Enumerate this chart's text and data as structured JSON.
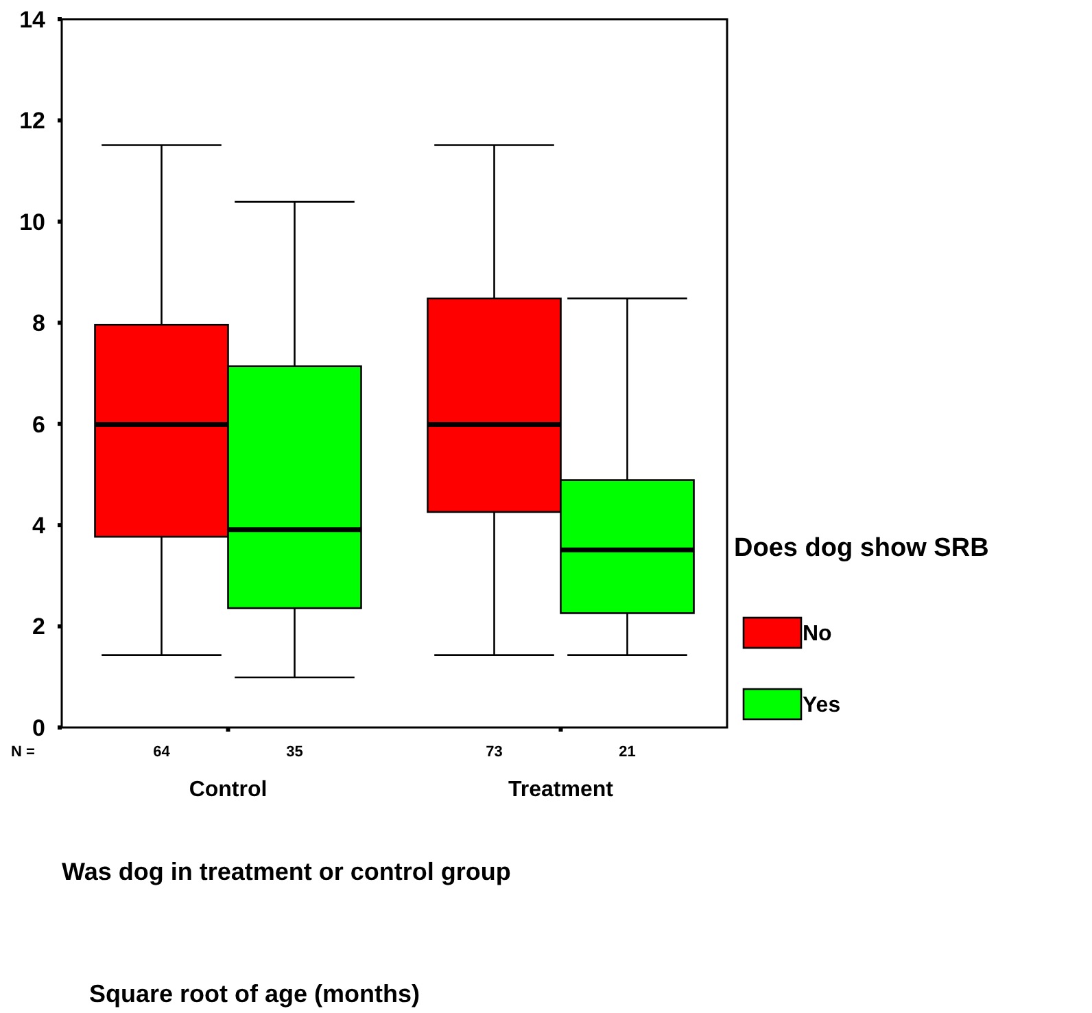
{
  "chart_data": {
    "type": "box",
    "xlabel": "Was dog in treatment or control group",
    "legend_title": "Does dog show SRB",
    "legend": "right",
    "categories": [
      "Control",
      "Treatment"
    ],
    "ylim": [
      0,
      14
    ],
    "yticks": [
      0,
      2,
      4,
      6,
      8,
      10,
      12,
      14
    ],
    "series": [
      {
        "name": "No",
        "color": "#ff0000",
        "boxes": [
          {
            "low": 1.43,
            "q1": 3.77,
            "median": 5.99,
            "q3": 7.96,
            "high": 11.51
          },
          {
            "low": 1.43,
            "q1": 4.26,
            "median": 5.99,
            "q3": 8.48,
            "high": 11.51
          }
        ]
      },
      {
        "name": "Yes",
        "color": "#00ff00",
        "boxes": [
          {
            "low": 0.99,
            "q1": 2.36,
            "median": 3.91,
            "q3": 7.14,
            "high": 10.39
          },
          {
            "low": 1.43,
            "q1": 2.26,
            "median": 3.51,
            "q3": 4.89,
            "high": 8.48
          }
        ]
      }
    ],
    "annotations": [
      "Square root of age (months)",
      "N =",
      "64",
      "35",
      "73",
      "21"
    ]
  }
}
